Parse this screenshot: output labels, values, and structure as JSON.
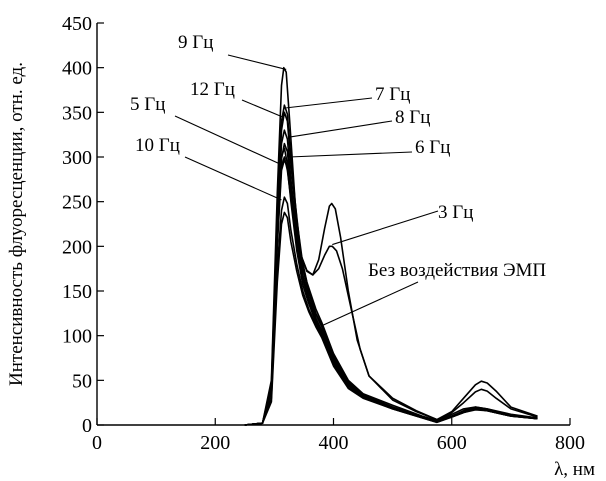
{
  "chart_data": {
    "type": "line",
    "xlabel": "λ, нм",
    "ylabel": "Интенсивность флуоресценции, отн. ед.",
    "xlim": [
      0,
      800
    ],
    "ylim": [
      0,
      450
    ],
    "x_ticks": [
      0,
      200,
      400,
      600,
      800
    ],
    "y_ticks": [
      0,
      50,
      100,
      150,
      200,
      250,
      300,
      350,
      400,
      450
    ],
    "grid": false,
    "series": [
      {
        "name": "9 Гц",
        "points": [
          [
            250,
            0
          ],
          [
            280,
            2
          ],
          [
            295,
            50
          ],
          [
            305,
            260
          ],
          [
            312,
            380
          ],
          [
            316,
            400
          ],
          [
            320,
            395
          ],
          [
            326,
            340
          ],
          [
            335,
            250
          ],
          [
            345,
            190
          ],
          [
            355,
            160
          ],
          [
            370,
            130
          ],
          [
            380,
            115
          ],
          [
            400,
            80
          ],
          [
            425,
            50
          ],
          [
            450,
            35
          ],
          [
            500,
            22
          ],
          [
            550,
            10
          ],
          [
            575,
            5
          ],
          [
            600,
            12
          ],
          [
            620,
            18
          ],
          [
            640,
            20
          ],
          [
            660,
            18
          ],
          [
            700,
            12
          ],
          [
            745,
            8
          ]
        ],
        "label_at": [
          320,
          398
        ]
      },
      {
        "name": "7 Гц",
        "points": [
          [
            250,
            0
          ],
          [
            280,
            2
          ],
          [
            295,
            45
          ],
          [
            305,
            240
          ],
          [
            312,
            340
          ],
          [
            317,
            358
          ],
          [
            322,
            348
          ],
          [
            328,
            300
          ],
          [
            338,
            230
          ],
          [
            348,
            180
          ],
          [
            358,
            150
          ],
          [
            370,
            125
          ],
          [
            380,
            112
          ],
          [
            400,
            78
          ],
          [
            425,
            48
          ],
          [
            450,
            34
          ],
          [
            500,
            20
          ],
          [
            550,
            9
          ],
          [
            575,
            4
          ],
          [
            600,
            10
          ],
          [
            620,
            16
          ],
          [
            640,
            20
          ],
          [
            660,
            18
          ],
          [
            700,
            11
          ],
          [
            745,
            7
          ]
        ],
        "label_at": [
          320,
          355
        ]
      },
      {
        "name": "12 Гц",
        "points": [
          [
            250,
            0
          ],
          [
            280,
            2
          ],
          [
            295,
            42
          ],
          [
            305,
            230
          ],
          [
            312,
            330
          ],
          [
            317,
            350
          ],
          [
            322,
            340
          ],
          [
            328,
            292
          ],
          [
            338,
            225
          ],
          [
            348,
            175
          ],
          [
            358,
            148
          ],
          [
            370,
            124
          ],
          [
            380,
            110
          ],
          [
            400,
            76
          ],
          [
            425,
            47
          ],
          [
            450,
            33
          ],
          [
            500,
            20
          ],
          [
            550,
            9
          ],
          [
            575,
            4
          ],
          [
            600,
            10
          ],
          [
            620,
            15
          ],
          [
            640,
            19
          ],
          [
            660,
            17
          ],
          [
            700,
            11
          ],
          [
            745,
            7
          ]
        ],
        "label_at": [
          313,
          345
        ]
      },
      {
        "name": "8 Гц",
        "points": [
          [
            250,
            0
          ],
          [
            280,
            2
          ],
          [
            295,
            40
          ],
          [
            305,
            220
          ],
          [
            312,
            315
          ],
          [
            317,
            330
          ],
          [
            322,
            320
          ],
          [
            328,
            275
          ],
          [
            338,
            212
          ],
          [
            348,
            168
          ],
          [
            358,
            143
          ],
          [
            370,
            120
          ],
          [
            380,
            106
          ],
          [
            400,
            74
          ],
          [
            425,
            46
          ],
          [
            450,
            33
          ],
          [
            500,
            20
          ],
          [
            550,
            9
          ],
          [
            575,
            4
          ],
          [
            600,
            10
          ],
          [
            620,
            15
          ],
          [
            640,
            19
          ],
          [
            660,
            17
          ],
          [
            700,
            11
          ],
          [
            745,
            7
          ]
        ],
        "label_at": [
          323,
          322
        ]
      },
      {
        "name": "6 Гц",
        "points": [
          [
            250,
            0
          ],
          [
            280,
            2
          ],
          [
            295,
            38
          ],
          [
            305,
            210
          ],
          [
            312,
            298
          ],
          [
            317,
            315
          ],
          [
            322,
            306
          ],
          [
            328,
            262
          ],
          [
            338,
            205
          ],
          [
            348,
            163
          ],
          [
            358,
            140
          ],
          [
            370,
            118
          ],
          [
            380,
            104
          ],
          [
            400,
            72
          ],
          [
            425,
            45
          ],
          [
            450,
            32
          ],
          [
            500,
            19
          ],
          [
            550,
            9
          ],
          [
            575,
            4
          ],
          [
            600,
            10
          ],
          [
            620,
            15
          ],
          [
            640,
            18
          ],
          [
            660,
            17
          ],
          [
            700,
            11
          ],
          [
            745,
            7
          ]
        ],
        "label_at": [
          325,
          300
        ]
      },
      {
        "name": "5 Гц",
        "points": [
          [
            250,
            0
          ],
          [
            280,
            2
          ],
          [
            295,
            36
          ],
          [
            305,
            200
          ],
          [
            312,
            285
          ],
          [
            317,
            297
          ],
          [
            322,
            288
          ],
          [
            328,
            250
          ],
          [
            338,
            195
          ],
          [
            348,
            157
          ],
          [
            358,
            136
          ],
          [
            370,
            115
          ],
          [
            380,
            102
          ],
          [
            400,
            70
          ],
          [
            425,
            44
          ],
          [
            450,
            32
          ],
          [
            500,
            19
          ],
          [
            550,
            9
          ],
          [
            575,
            4
          ],
          [
            600,
            9
          ],
          [
            620,
            14
          ],
          [
            640,
            18
          ],
          [
            660,
            16
          ],
          [
            700,
            10
          ],
          [
            745,
            7
          ]
        ],
        "label_at": [
          310,
          292
        ]
      },
      {
        "name": "10 Гц",
        "points": [
          [
            250,
            0
          ],
          [
            280,
            2
          ],
          [
            295,
            30
          ],
          [
            305,
            175
          ],
          [
            312,
            240
          ],
          [
            317,
            255
          ],
          [
            322,
            248
          ],
          [
            328,
            218
          ],
          [
            338,
            180
          ],
          [
            348,
            150
          ],
          [
            358,
            130
          ],
          [
            370,
            112
          ],
          [
            380,
            100
          ],
          [
            400,
            68
          ],
          [
            425,
            42
          ],
          [
            450,
            31
          ],
          [
            500,
            18
          ],
          [
            550,
            8
          ],
          [
            575,
            3
          ],
          [
            600,
            9
          ],
          [
            620,
            14
          ],
          [
            640,
            18
          ],
          [
            660,
            16
          ],
          [
            700,
            10
          ],
          [
            745,
            7
          ]
        ],
        "label_at": [
          312,
          252
        ]
      },
      {
        "name": "",
        "points": [
          [
            250,
            0
          ],
          [
            280,
            2
          ],
          [
            295,
            26
          ],
          [
            305,
            160
          ],
          [
            312,
            225
          ],
          [
            317,
            238
          ],
          [
            322,
            232
          ],
          [
            328,
            205
          ],
          [
            338,
            172
          ],
          [
            348,
            145
          ],
          [
            358,
            127
          ],
          [
            370,
            110
          ],
          [
            380,
            98
          ],
          [
            400,
            66
          ],
          [
            425,
            41
          ],
          [
            450,
            30
          ],
          [
            500,
            18
          ],
          [
            550,
            8
          ],
          [
            575,
            3
          ],
          [
            600,
            9
          ],
          [
            620,
            14
          ],
          [
            640,
            17
          ],
          [
            660,
            16
          ],
          [
            700,
            10
          ],
          [
            745,
            7
          ]
        ],
        "label_at": null
      },
      {
        "name": "3 Гц",
        "points": [
          [
            250,
            0
          ],
          [
            280,
            2
          ],
          [
            295,
            40
          ],
          [
            305,
            215
          ],
          [
            312,
            300
          ],
          [
            317,
            310
          ],
          [
            322,
            292
          ],
          [
            332,
            235
          ],
          [
            345,
            190
          ],
          [
            355,
            172
          ],
          [
            365,
            168
          ],
          [
            375,
            185
          ],
          [
            385,
            220
          ],
          [
            393,
            245
          ],
          [
            397,
            248
          ],
          [
            403,
            242
          ],
          [
            412,
            210
          ],
          [
            425,
            150
          ],
          [
            440,
            95
          ],
          [
            460,
            55
          ],
          [
            500,
            30
          ],
          [
            540,
            16
          ],
          [
            575,
            6
          ],
          [
            600,
            15
          ],
          [
            620,
            30
          ],
          [
            640,
            45
          ],
          [
            650,
            49
          ],
          [
            660,
            47
          ],
          [
            675,
            38
          ],
          [
            700,
            20
          ],
          [
            745,
            10
          ]
        ],
        "label_at": [
          398,
          202
        ]
      },
      {
        "name": "Без воздействия ЭМП",
        "points": [
          [
            250,
            0
          ],
          [
            280,
            2
          ],
          [
            295,
            38
          ],
          [
            305,
            205
          ],
          [
            312,
            290
          ],
          [
            317,
            300
          ],
          [
            322,
            285
          ],
          [
            332,
            232
          ],
          [
            345,
            190
          ],
          [
            355,
            173
          ],
          [
            365,
            168
          ],
          [
            375,
            175
          ],
          [
            385,
            190
          ],
          [
            393,
            200
          ],
          [
            398,
            200
          ],
          [
            405,
            195
          ],
          [
            415,
            175
          ],
          [
            430,
            130
          ],
          [
            445,
            85
          ],
          [
            460,
            55
          ],
          [
            500,
            28
          ],
          [
            540,
            15
          ],
          [
            575,
            6
          ],
          [
            600,
            14
          ],
          [
            620,
            25
          ],
          [
            640,
            37
          ],
          [
            650,
            40
          ],
          [
            660,
            38
          ],
          [
            675,
            30
          ],
          [
            700,
            18
          ],
          [
            745,
            9
          ]
        ],
        "label_at": [
          383,
          112
        ]
      }
    ]
  }
}
